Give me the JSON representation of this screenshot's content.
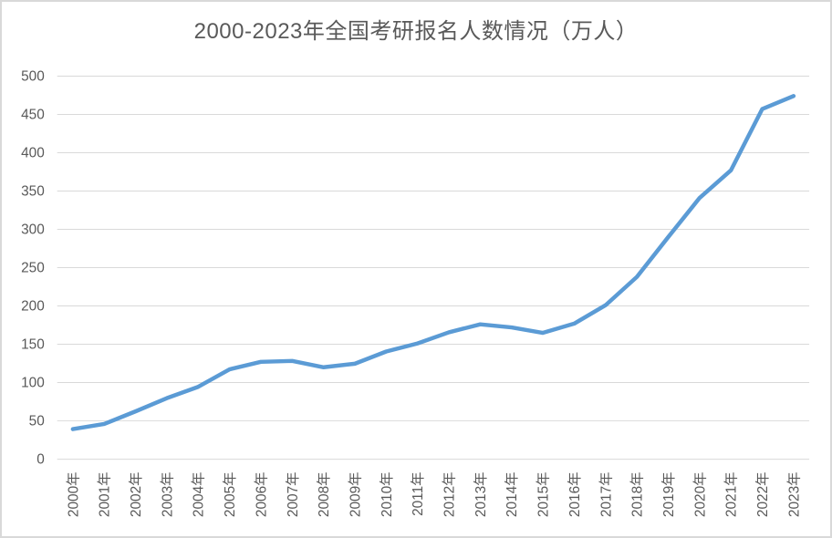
{
  "chart": {
    "title": "2000-2023年全国考研报名人数情况（万人）"
  },
  "chart_data": {
    "type": "line",
    "title": "2000-2023年全国考研报名人数情况（万人）",
    "categories": [
      "2000年",
      "2001年",
      "2002年",
      "2003年",
      "2004年",
      "2005年",
      "2006年",
      "2007年",
      "2008年",
      "2009年",
      "2010年",
      "2011年",
      "2012年",
      "2013年",
      "2014年",
      "2015年",
      "2016年",
      "2017年",
      "2018年",
      "2019年",
      "2020年",
      "2021年",
      "2022年",
      "2023年"
    ],
    "values": [
      39.2,
      46,
      62.4,
      79.7,
      94.5,
      117.2,
      127.1,
      128.2,
      120,
      124.6,
      140.6,
      151.1,
      165.6,
      176,
      172,
      164.9,
      177,
      201,
      238,
      290,
      341,
      377,
      457,
      474
    ],
    "xlabel": "",
    "ylabel": "",
    "ylim": [
      0,
      500
    ],
    "ytick_step": 50,
    "yticks": [
      0,
      50,
      100,
      150,
      200,
      250,
      300,
      350,
      400,
      450,
      500
    ],
    "grid": true,
    "legend": "none",
    "colors": {
      "line": "#5B9BD5",
      "gridline": "#D9D9D9",
      "axis_line": "#D9D9D9",
      "tick_label": "#595959",
      "title": "#595959",
      "frame_border": "#D9D9D9",
      "background": "#FFFFFF"
    }
  }
}
